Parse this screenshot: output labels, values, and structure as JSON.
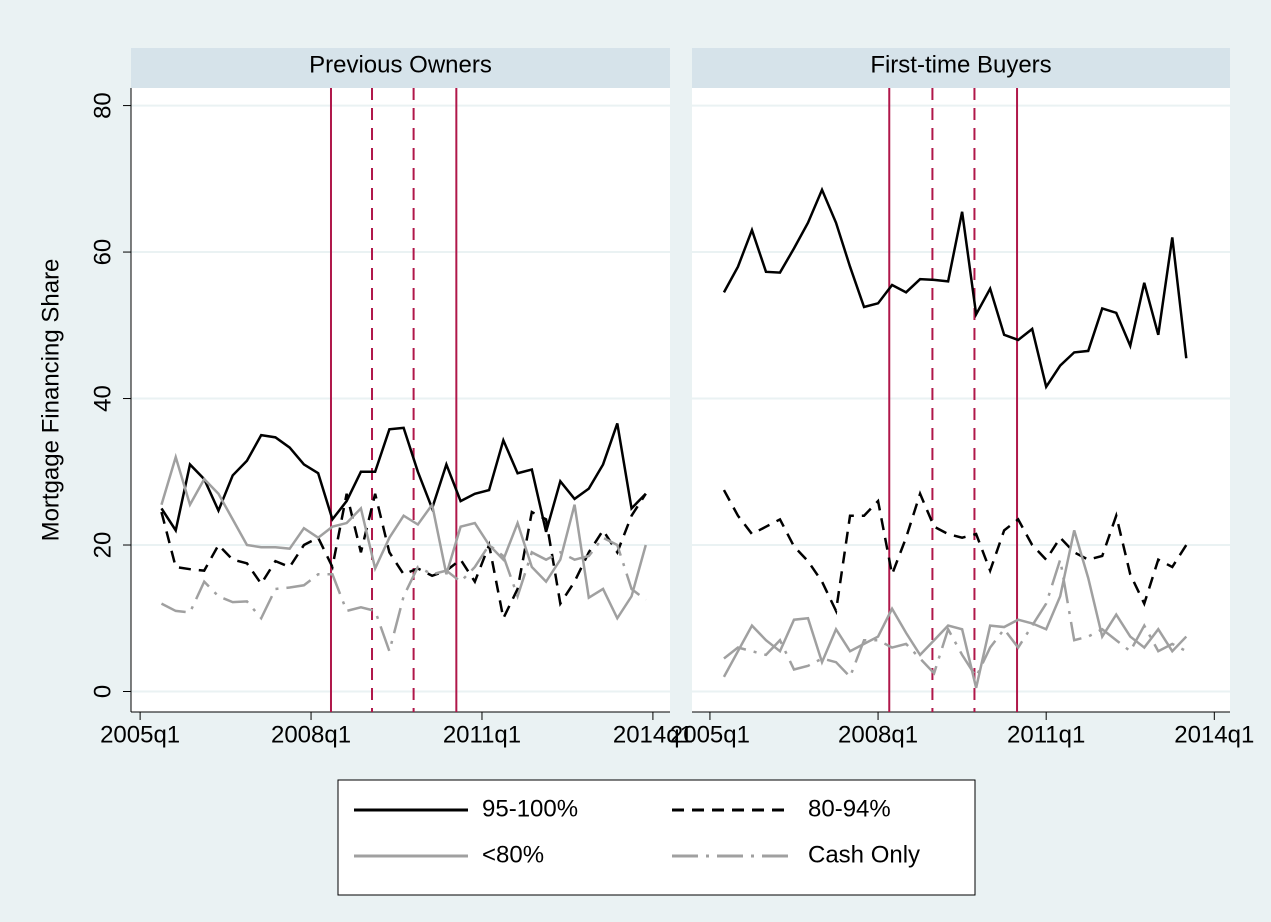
{
  "chart_data": [
    {
      "type": "line",
      "title": "Previous Owners",
      "ylabel": "Mortgage Financing Share",
      "x": [
        2005.375,
        2005.625,
        2005.875,
        2006.125,
        2006.375,
        2006.625,
        2006.875,
        2007.125,
        2007.375,
        2007.625,
        2007.875,
        2008.125,
        2008.375,
        2008.625,
        2008.875,
        2009.125,
        2009.375,
        2009.625,
        2009.875,
        2010.125,
        2010.375,
        2010.625,
        2010.875,
        2011.125,
        2011.375,
        2011.625,
        2011.875,
        2012.125,
        2012.375,
        2012.625,
        2012.875,
        2013.125,
        2013.375,
        2013.625,
        2013.875
      ],
      "series": [
        {
          "name": "95-100%",
          "color": "#000000",
          "dash": "solid",
          "values": [
            25,
            22,
            31,
            29,
            24.7,
            29.5,
            31.5,
            35,
            34.7,
            33.3,
            31,
            29.8,
            23.5,
            26,
            30,
            30,
            35.8,
            36,
            30,
            25,
            31,
            26,
            27,
            27.5,
            34.3,
            29.8,
            30.3,
            21.8,
            28.7,
            26.3,
            27.7,
            31,
            36.6,
            25,
            27
          ]
        },
        {
          "name": "80-94%",
          "color": "#000000",
          "dash": "dash",
          "values": [
            24.5,
            17,
            16.7,
            16.5,
            20,
            18,
            17.5,
            14.7,
            17.8,
            17,
            20,
            21,
            17,
            27,
            19,
            27,
            19,
            16,
            16.8,
            15.8,
            16.5,
            18,
            15,
            20,
            10,
            14,
            24.5,
            23.5,
            12,
            15,
            19,
            22,
            19,
            24,
            27
          ]
        },
        {
          "name": "<80%",
          "color": "#a0a0a0",
          "dash": "solid",
          "values": [
            25.5,
            32,
            25.5,
            29,
            27,
            23.5,
            20,
            19.7,
            19.7,
            19.5,
            22.3,
            21,
            22.5,
            23,
            25,
            16.8,
            21,
            24,
            22.8,
            25.5,
            16,
            22.5,
            23,
            20,
            18,
            23,
            17,
            15,
            18,
            25.5,
            12.8,
            14,
            10,
            13,
            20
          ]
        },
        {
          "name": "Cash Only",
          "color": "#a0a0a0",
          "dash": "longdash-dot",
          "values": [
            12,
            11,
            10.8,
            15,
            13,
            12.2,
            12.3,
            10,
            14,
            14.2,
            14.5,
            16,
            16,
            11,
            11.5,
            11,
            5.5,
            13,
            17,
            16,
            16.5,
            15,
            17,
            20,
            18.5,
            13,
            19,
            18,
            19,
            18,
            18.5,
            21,
            20,
            14,
            12.5
          ]
        }
      ],
      "vlines": [
        {
          "x": 2008.35,
          "style": "solid"
        },
        {
          "x": 2009.07,
          "style": "dash"
        },
        {
          "x": 2009.8,
          "style": "dash"
        },
        {
          "x": 2010.55,
          "style": "solid"
        }
      ],
      "xlim": [
        2004.84,
        2014.3
      ],
      "xticks": [
        {
          "value": 2005,
          "label": "2005q1"
        },
        {
          "value": 2008,
          "label": "2008q1"
        },
        {
          "value": 2011,
          "label": "2011q1"
        },
        {
          "value": 2014,
          "label": "2014q1"
        }
      ],
      "ylim": [
        -2.8,
        82.4
      ],
      "yticks": [
        0,
        20,
        40,
        60,
        80
      ],
      "grid": true
    },
    {
      "type": "line",
      "title": "First-time Buyers",
      "x": [
        2005.25,
        2005.5,
        2005.75,
        2006,
        2006.25,
        2006.5,
        2006.75,
        2007,
        2007.25,
        2007.5,
        2007.75,
        2008,
        2008.25,
        2008.5,
        2008.75,
        2009,
        2009.25,
        2009.5,
        2009.75,
        2010,
        2010.25,
        2010.5,
        2010.75,
        2011,
        2011.25,
        2011.5,
        2011.75,
        2012,
        2012.25,
        2012.5,
        2012.75,
        2013,
        2013.25,
        2013.5
      ],
      "series": [
        {
          "name": "95-100%",
          "color": "#000000",
          "dash": "solid",
          "values": [
            54.5,
            58,
            63,
            57.3,
            57.2,
            60.5,
            64,
            68.5,
            64,
            58,
            52.5,
            53,
            55.5,
            54.5,
            56.3,
            56.2,
            56,
            65.5,
            51.5,
            55,
            48.7,
            48,
            49.5,
            41.6,
            44.5,
            46.3,
            46.5,
            52.3,
            51.7,
            47.2,
            55.8,
            48.7,
            62,
            45.5
          ]
        },
        {
          "name": "80-94%",
          "color": "#000000",
          "dash": "dash",
          "values": [
            27.5,
            24,
            21.5,
            22.5,
            23.5,
            19.8,
            17.8,
            15,
            11,
            24,
            24,
            26,
            16,
            21,
            27,
            22.5,
            21.5,
            21,
            21.5,
            16.5,
            22,
            23.5,
            20,
            18,
            21,
            19,
            18,
            18.5,
            24,
            16,
            12,
            18,
            17,
            20
          ]
        },
        {
          "name": "<80%",
          "color": "#a0a0a0",
          "dash": "solid",
          "values": [
            2,
            5.5,
            9,
            7,
            5.5,
            9.8,
            10,
            4,
            8.5,
            5.5,
            6.5,
            7.5,
            11.3,
            8,
            5,
            7,
            9,
            8.5,
            0.5,
            9,
            8.8,
            9.8,
            9.3,
            8.5,
            13,
            22,
            15.5,
            7.5,
            10.5,
            7.5,
            6,
            8.5,
            5.5,
            7.5
          ]
        },
        {
          "name": "Cash Only",
          "color": "#a0a0a0",
          "dash": "longdash-dot",
          "values": [
            4.5,
            6,
            5.5,
            5,
            7,
            3,
            3.5,
            4.5,
            4,
            2,
            7,
            7,
            6,
            6.5,
            4.5,
            2.5,
            8.5,
            5,
            2,
            6,
            8.5,
            6,
            9,
            12,
            18,
            7,
            7.5,
            8.5,
            7,
            5.5,
            9,
            5.5,
            6.5,
            5.5
          ]
        }
      ],
      "vlines": [
        {
          "x": 2008.2,
          "style": "solid"
        },
        {
          "x": 2008.97,
          "style": "dash"
        },
        {
          "x": 2009.72,
          "style": "dash"
        },
        {
          "x": 2010.48,
          "style": "solid"
        }
      ],
      "xlim": [
        2004.68,
        2014.28
      ],
      "xticks": [
        {
          "value": 2005,
          "label": "2005q1"
        },
        {
          "value": 2008,
          "label": "2008q1"
        },
        {
          "value": 2011,
          "label": "2011q1"
        },
        {
          "value": 2014,
          "label": "2014q1"
        }
      ],
      "ylim": [
        -2.8,
        82.4
      ],
      "yticks": [
        0,
        20,
        40,
        60,
        80
      ],
      "grid": true
    }
  ]
}
